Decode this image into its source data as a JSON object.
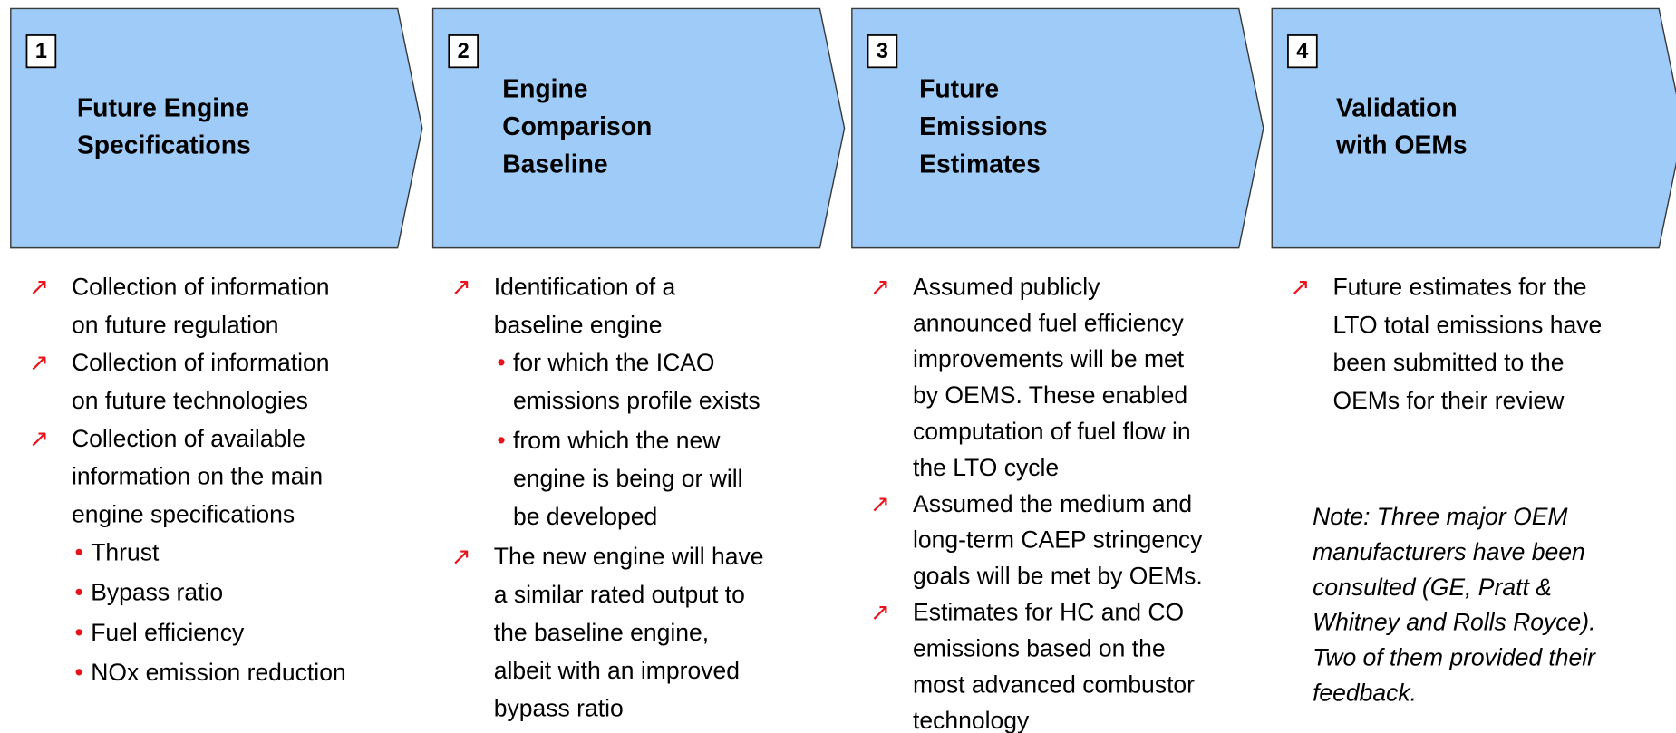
{
  "columns": [
    {
      "number": "1",
      "title": [
        "Future Engine",
        "Specifications"
      ],
      "bullets": [
        {
          "lines": [
            "Collection of information",
            "on future regulation"
          ]
        },
        {
          "lines": [
            "Collection of information",
            "on future technologies"
          ]
        },
        {
          "lines": [
            "Collection of available",
            "information on the main",
            "engine specifications"
          ],
          "sub": [
            {
              "lines": [
                "Thrust"
              ]
            },
            {
              "lines": [
                "Bypass ratio"
              ]
            },
            {
              "lines": [
                "Fuel efficiency"
              ]
            },
            {
              "lines": [
                "NOx emission reduction"
              ]
            }
          ]
        }
      ]
    },
    {
      "number": "2",
      "title": [
        "Engine",
        "Comparison",
        "Baseline"
      ],
      "bullets": [
        {
          "lines": [
            "Identification of a",
            "baseline engine"
          ],
          "sub": [
            {
              "lines": [
                "for which the ICAO",
                "emissions profile exists"
              ]
            },
            {
              "lines": [
                "from which the new",
                "engine is being or will",
                "be developed"
              ]
            }
          ]
        },
        {
          "lines": [
            "The new engine will have",
            "a similar rated output to",
            "the baseline engine,",
            "albeit with an improved",
            "bypass ratio"
          ]
        }
      ]
    },
    {
      "number": "3",
      "title": [
        "Future",
        "Emissions",
        "Estimates"
      ],
      "bullets": [
        {
          "lines": [
            "Assumed  publicly",
            "announced fuel efficiency",
            "improvements will be met",
            "by OEMS. These  enabled",
            "computation of fuel flow in",
            "the LTO cycle"
          ]
        },
        {
          "lines": [
            "Assumed the medium and",
            "long-term CAEP stringency",
            "goals will be met by OEMs."
          ]
        },
        {
          "lines": [
            "Estimates for HC and CO",
            "emissions based on the",
            "most advanced combustor",
            "technology"
          ]
        }
      ]
    },
    {
      "number": "4",
      "title": [
        "Validation",
        "with OEMs"
      ],
      "bullets": [
        {
          "lines": [
            "Future estimates for the",
            "LTO total emissions have",
            "been submitted to the",
            "OEMs for their review"
          ]
        }
      ],
      "note": [
        "Note: Three major OEM",
        "manufacturers have been",
        "consulted (GE, Pratt &",
        "Whitney and Rolls Royce).",
        "Two of them provided their",
        "feedback."
      ]
    }
  ]
}
